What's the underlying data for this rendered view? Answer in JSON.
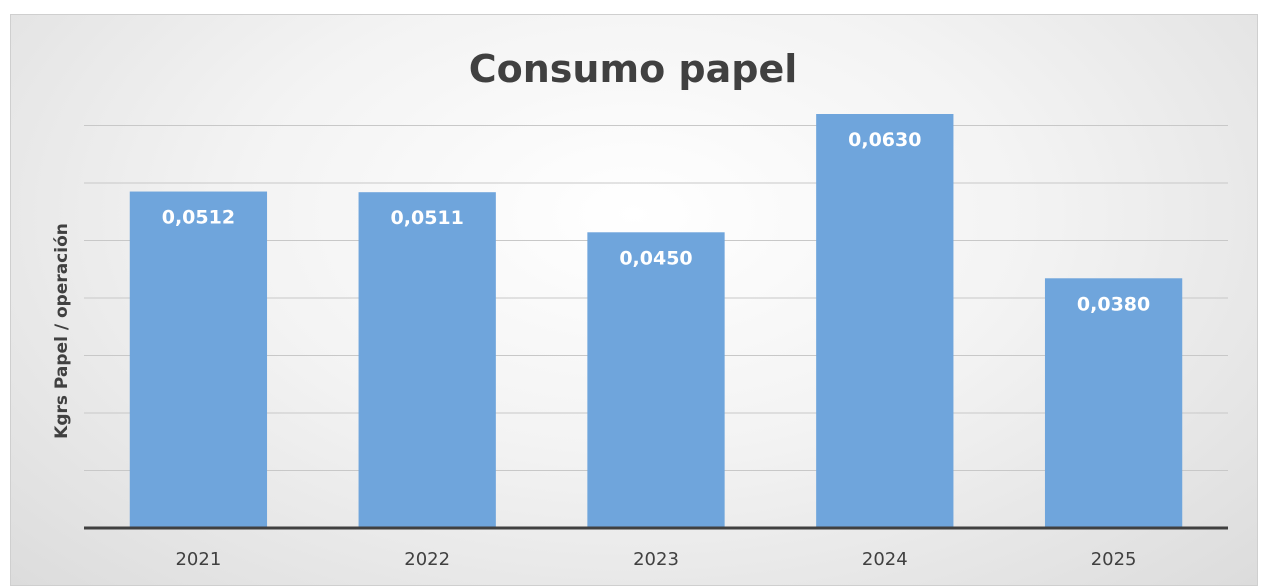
{
  "chart_data": {
    "type": "bar",
    "title": "Consumo papel",
    "xlabel": "",
    "ylabel": "Kgrs Papel  / operación",
    "categories": [
      "2021",
      "2022",
      "2023",
      "2024",
      "2025"
    ],
    "values": [
      0.0512,
      0.0511,
      0.045,
      0.063,
      0.038
    ],
    "data_labels": [
      "0,0512",
      "0,0511",
      "0,0450",
      "0,0630",
      "0,0380"
    ],
    "ylim": [
      0,
      0.07
    ],
    "grid": true,
    "legend": "none",
    "bar_color": "#6fa5dc",
    "axis_color": "#404040"
  }
}
